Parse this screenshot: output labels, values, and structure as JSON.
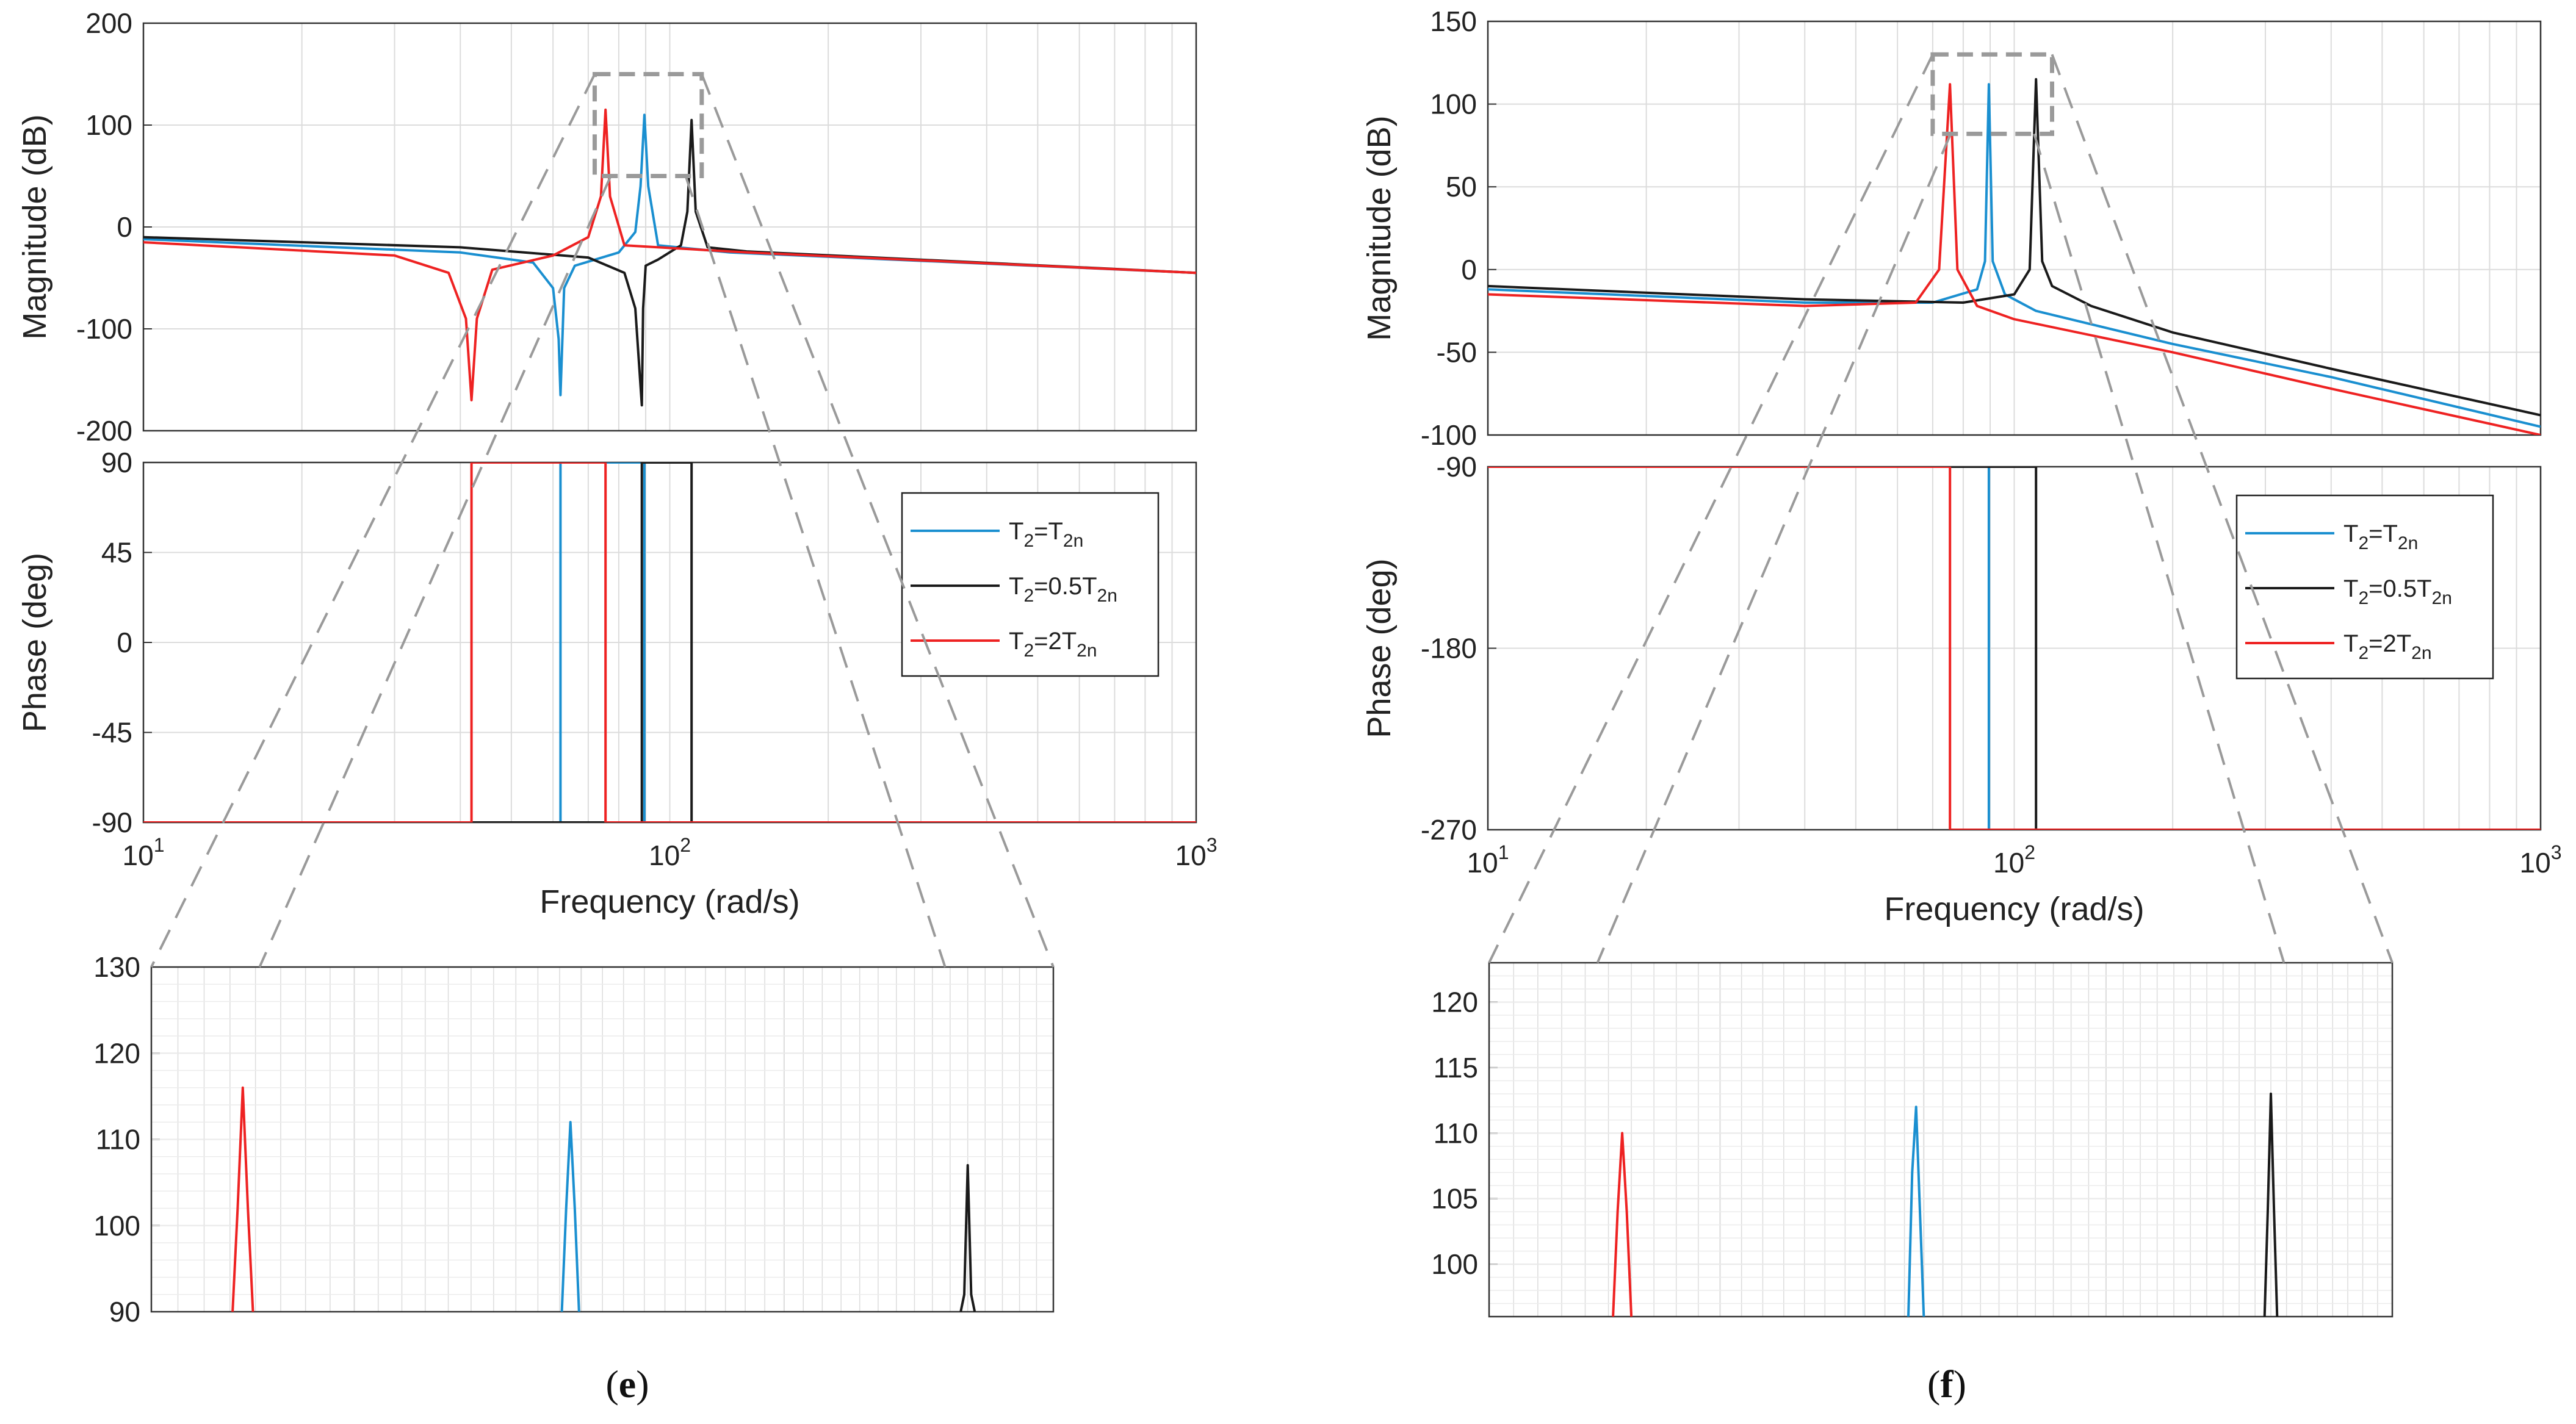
{
  "figure_captions": [
    {
      "open": "(",
      "letter": "e",
      "close": ")"
    },
    {
      "open": "(",
      "letter": "f",
      "close": ")"
    }
  ],
  "colors": {
    "T2_eq_T2n": "#1a8fd0",
    "T2_eq_0_5T2n": "#1a1a1a",
    "T2_eq_2T2n": "#ee2222",
    "grid": "#dcdcdc",
    "zoom_guide": "#9a9a9a"
  },
  "chart_data": [
    {
      "id": "e-magnitude",
      "panel": "e",
      "type": "line",
      "xscale": "log",
      "xlim": [
        10,
        1000
      ],
      "ylim": [
        -200,
        200
      ],
      "ylabel": "Magnitude (dB)",
      "yticks": [
        "200",
        "100",
        "0",
        "-100",
        "-200"
      ],
      "yticks_values": [
        200,
        100,
        0,
        -100,
        -200
      ],
      "series": [
        {
          "name": "T2=T2n",
          "x": [
            10,
            40,
            55,
            60,
            61.5,
            62,
            63,
            66,
            80,
            86,
            88,
            89.5,
            91,
            95,
            130,
            1000
          ],
          "y": [
            -12,
            -25,
            -35,
            -60,
            -110,
            -165,
            -60,
            -38,
            -25,
            -5,
            40,
            110,
            40,
            -18,
            -25,
            -45
          ]
        },
        {
          "name": "T2=0.5T2n",
          "x": [
            10,
            40,
            70,
            82,
            86,
            88.5,
            89,
            90,
            95,
            105,
            108,
            110,
            112,
            118,
            140,
            1000
          ],
          "y": [
            -10,
            -20,
            -30,
            -45,
            -80,
            -175,
            -80,
            -38,
            -32,
            -18,
            15,
            105,
            15,
            -20,
            -24,
            -45
          ]
        },
        {
          "name": "T2=2T2n",
          "x": [
            10,
            30,
            38,
            41,
            42,
            43,
            46,
            60,
            70,
            74,
            75.5,
            77,
            82,
            140,
            1000
          ],
          "y": [
            -15,
            -28,
            -45,
            -90,
            -170,
            -90,
            -42,
            -28,
            -10,
            30,
            115,
            30,
            -18,
            -25,
            -45
          ]
        }
      ]
    },
    {
      "id": "e-phase",
      "panel": "e",
      "type": "line",
      "xscale": "log",
      "xlim": [
        10,
        1000
      ],
      "ylim": [
        -90,
        90
      ],
      "ylabel": "Phase (deg)",
      "xlabel": "Frequency  (rad/s)",
      "yticks": [
        "90",
        "45",
        "0",
        "-45",
        "-90"
      ],
      "yticks_values": [
        90,
        45,
        0,
        -45,
        -90
      ],
      "xticks": [
        {
          "base": "10",
          "exp": "1"
        },
        {
          "base": "10",
          "exp": "2"
        },
        {
          "base": "10",
          "exp": "3"
        }
      ],
      "xticks_values": [
        10,
        100,
        1000
      ],
      "series": [
        {
          "name": "T2=T2n",
          "x": [
            10,
            62,
            62,
            89.5,
            89.5,
            1000
          ],
          "y": [
            -90,
            -90,
            90,
            90,
            -90,
            -90
          ]
        },
        {
          "name": "T2=0.5T2n",
          "x": [
            10,
            88.5,
            88.5,
            110,
            110,
            1000
          ],
          "y": [
            -90,
            -90,
            90,
            90,
            -90,
            -90
          ]
        },
        {
          "name": "T2=2T2n",
          "x": [
            10,
            42,
            42,
            75.5,
            75.5,
            1000
          ],
          "y": [
            -90,
            -90,
            90,
            90,
            -90,
            -90
          ]
        }
      ],
      "legend": {
        "placement": "right",
        "entries": [
          {
            "key": "T2=T2n",
            "base": "T",
            "sub1": "2",
            "mid": "=T",
            "coef": "",
            "sub2": "2n"
          },
          {
            "key": "T2=0.5T2n",
            "base": "T",
            "sub1": "2",
            "mid": "=0.5T",
            "coef": "",
            "sub2": "2n"
          },
          {
            "key": "T2=2T2n",
            "base": "T",
            "sub1": "2",
            "mid": "=2T",
            "coef": "",
            "sub2": "2n"
          }
        ]
      }
    },
    {
      "id": "e-zoom",
      "panel": "e",
      "type": "line",
      "xscale": "log",
      "xlim": [
        72,
        115
      ],
      "ylim": [
        90,
        130
      ],
      "yticks": [
        "130",
        "120",
        "110",
        "100",
        "90"
      ],
      "yticks_values": [
        130,
        120,
        110,
        100,
        90
      ],
      "series": [
        {
          "name": "T2=T2n",
          "x": [
            89.1,
            89.3,
            89.5,
            89.7,
            89.9
          ],
          "y": [
            90,
            102,
            112,
            102,
            90
          ]
        },
        {
          "name": "T2=0.5T2n",
          "x": [
            109.6,
            109.8,
            110,
            110.2,
            110.4
          ],
          "y": [
            90,
            92,
            107,
            92,
            90
          ]
        },
        {
          "name": "T2=2T2n",
          "x": [
            75.1,
            75.3,
            75.5,
            75.7,
            75.9
          ],
          "y": [
            90,
            102,
            116,
            102,
            90
          ]
        }
      ]
    },
    {
      "id": "f-magnitude",
      "panel": "f",
      "type": "line",
      "xscale": "log",
      "xlim": [
        10,
        1000
      ],
      "ylim": [
        -100,
        150
      ],
      "ylabel": "Magnitude (dB)",
      "yticks": [
        "150",
        "100",
        "50",
        "0",
        "-50",
        "-100"
      ],
      "yticks_values": [
        150,
        100,
        50,
        0,
        -50,
        -100
      ],
      "series": [
        {
          "name": "T2=T2n",
          "x": [
            10,
            40,
            70,
            85,
            88,
            89.5,
            91,
            96,
            110,
            200,
            400,
            1000
          ],
          "y": [
            -12,
            -20,
            -20,
            -12,
            5,
            112,
            5,
            -15,
            -25,
            -45,
            -65,
            -95
          ]
        },
        {
          "name": "T2=0.5T2n",
          "x": [
            10,
            40,
            80,
            100,
            107,
            110,
            113,
            118,
            140,
            200,
            400,
            1000
          ],
          "y": [
            -10,
            -18,
            -20,
            -15,
            0,
            115,
            5,
            -10,
            -22,
            -38,
            -60,
            -88
          ]
        },
        {
          "name": "T2=2T2n",
          "x": [
            10,
            40,
            65,
            72,
            75.5,
            78,
            85,
            100,
            200,
            400,
            1000
          ],
          "y": [
            -15,
            -22,
            -20,
            0,
            112,
            0,
            -22,
            -30,
            -50,
            -72,
            -100
          ]
        }
      ]
    },
    {
      "id": "f-phase",
      "panel": "f",
      "type": "line",
      "xscale": "log",
      "xlim": [
        10,
        1000
      ],
      "ylim": [
        -270,
        -90
      ],
      "ylabel": "Phase (deg)",
      "xlabel": "Frequency  (rad/s)",
      "yticks": [
        "-90",
        "-180",
        "-270"
      ],
      "yticks_values": [
        -90,
        -180,
        -270
      ],
      "xticks": [
        {
          "base": "10",
          "exp": "1"
        },
        {
          "base": "10",
          "exp": "2"
        },
        {
          "base": "10",
          "exp": "3"
        }
      ],
      "xticks_values": [
        10,
        100,
        1000
      ],
      "series": [
        {
          "name": "T2=T2n",
          "x": [
            10,
            89.5,
            89.5,
            1000
          ],
          "y": [
            -90,
            -90,
            -270,
            -270
          ]
        },
        {
          "name": "T2=0.5T2n",
          "x": [
            10,
            110,
            110,
            1000
          ],
          "y": [
            -90,
            -90,
            -270,
            -270
          ]
        },
        {
          "name": "T2=2T2n",
          "x": [
            10,
            75.5,
            75.5,
            1000
          ],
          "y": [
            -90,
            -90,
            -270,
            -270
          ]
        }
      ],
      "legend": {
        "placement": "right",
        "entries": [
          {
            "key": "T2=T2n",
            "base": "T",
            "sub1": "2",
            "mid": "=T",
            "coef": "",
            "sub2": "2n"
          },
          {
            "key": "T2=0.5T2n",
            "base": "T",
            "sub1": "2",
            "mid": "=0.5T",
            "coef": "",
            "sub2": "2n"
          },
          {
            "key": "T2=2T2n",
            "base": "T",
            "sub1": "2",
            "mid": "=2T",
            "coef": "",
            "sub2": "2n"
          }
        ]
      }
    },
    {
      "id": "f-zoom",
      "panel": "f",
      "type": "line",
      "xscale": "log",
      "xlim": [
        70,
        118
      ],
      "ylim": [
        96,
        123
      ],
      "yticks": [
        "120",
        "115",
        "110",
        "105",
        "100"
      ],
      "yticks_values": [
        120,
        115,
        110,
        105,
        100
      ],
      "series": [
        {
          "name": "T2=T2n",
          "x": [
            89.2,
            89.4,
            89.6,
            89.8,
            90
          ],
          "y": [
            96,
            107,
            112,
            104,
            96
          ]
        },
        {
          "name": "T2=0.5T2n",
          "x": [
            109.6,
            109.8,
            110,
            110.2,
            110.4
          ],
          "y": [
            96,
            104,
            113,
            104,
            96
          ]
        },
        {
          "name": "T2=2T2n",
          "x": [
            75.2,
            75.4,
            75.6,
            75.8,
            76
          ],
          "y": [
            96,
            104,
            110,
            104,
            96
          ]
        }
      ]
    }
  ]
}
